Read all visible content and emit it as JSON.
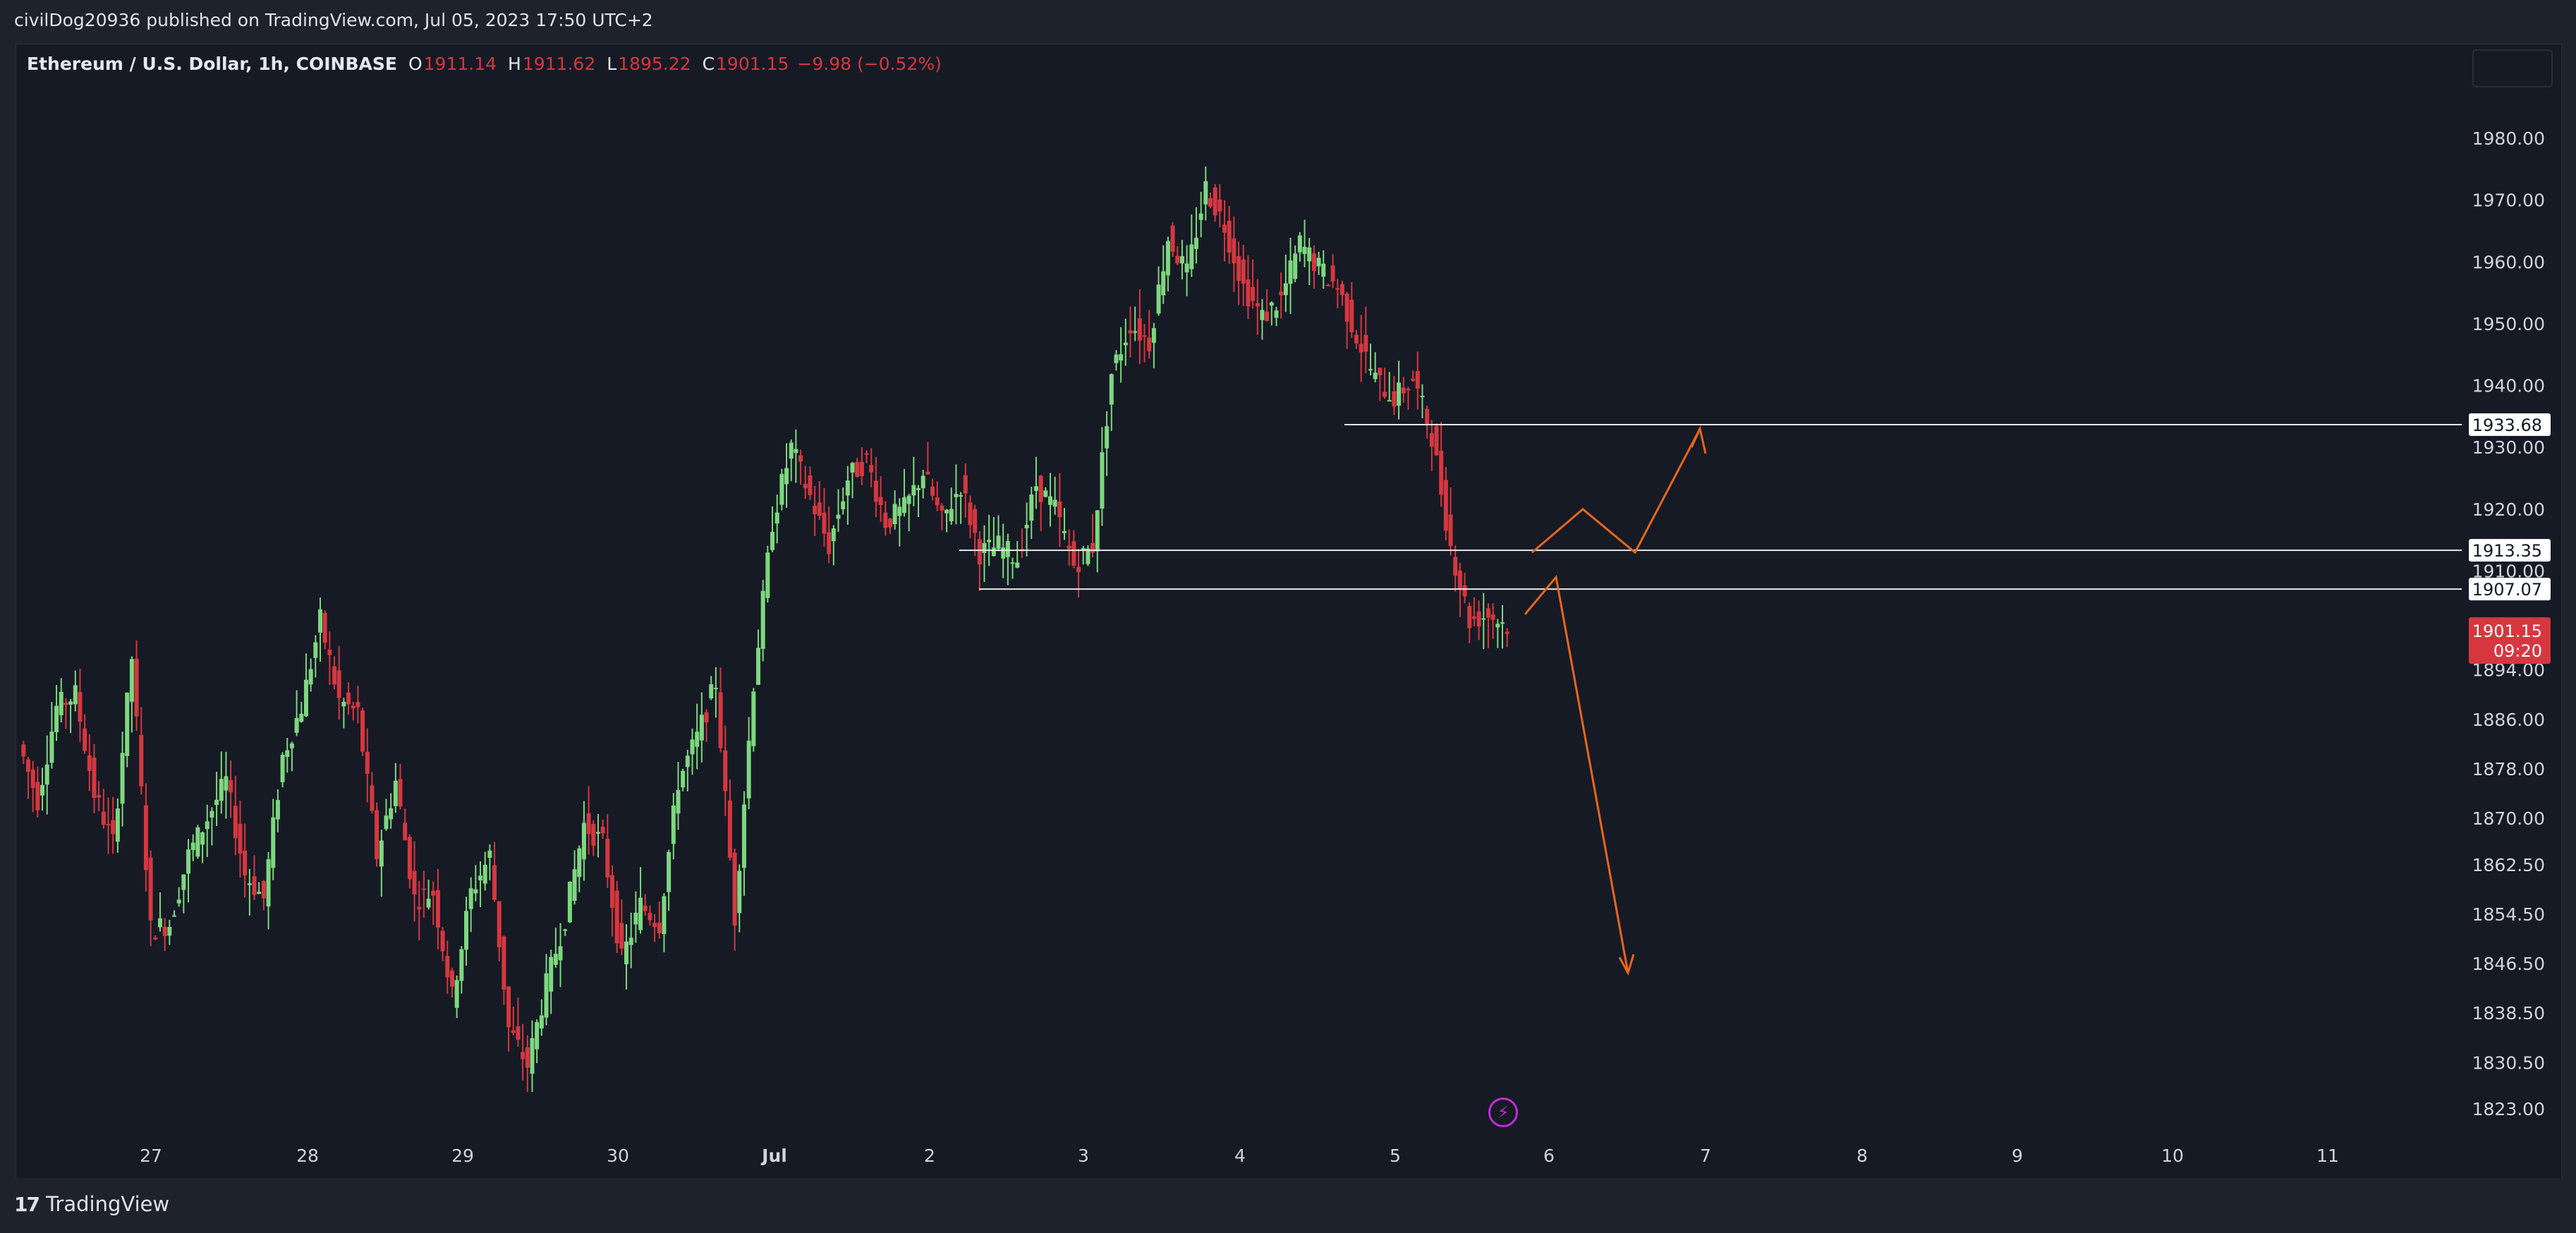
{
  "header": {
    "published_text": "civilDog20936 published on TradingView.com, Jul 05, 2023 17:50 UTC+2"
  },
  "legend": {
    "symbol": "Ethereum / U.S. Dollar, 1h, COINBASE",
    "open_label": "O",
    "open": "1911.14",
    "high_label": "H",
    "high": "1911.62",
    "low_label": "L",
    "low": "1895.22",
    "close_label": "C",
    "close": "1901.15",
    "change": "−9.98 (−0.52%)"
  },
  "price_scale": {
    "ticks": [
      "1980.00",
      "1970.00",
      "1960.00",
      "1950.00",
      "1940.00",
      "1930.00",
      "1920.00",
      "1910.00",
      "1894.00",
      "1886.00",
      "1878.00",
      "1870.00",
      "1862.50",
      "1854.50",
      "1846.50",
      "1838.50",
      "1830.50",
      "1823.00"
    ],
    "level_labels": [
      "1933.68",
      "1913.35",
      "1907.07"
    ],
    "last_price": "1901.15",
    "countdown": "09:20"
  },
  "time_scale": {
    "labels": [
      "27",
      "28",
      "29",
      "30",
      "Jul",
      "2",
      "3",
      "4",
      "5",
      "6",
      "7",
      "8",
      "9",
      "10",
      "11"
    ]
  },
  "drawings": {
    "horizontal_levels": [
      1933.68,
      1913.35,
      1907.07
    ]
  },
  "colors": {
    "background": "#161a25",
    "up": "#7dd87f",
    "down": "#d6373f",
    "arrow": "#e6661c",
    "level_line": "#e8e8e8",
    "price_badge": "#d6373f"
  },
  "icons": {
    "brand": "tradingview-logo-icon",
    "lightning": "lightning-icon"
  },
  "footer": {
    "brand": "TradingView"
  },
  "chart_data": {
    "type": "candlestick",
    "title": "Ethereum / U.S. Dollar, 1h, COINBASE",
    "ylim": [
      1818,
      1992
    ],
    "x_labels": [
      "27",
      "28",
      "29",
      "30",
      "Jul",
      "2",
      "3",
      "4",
      "5",
      "6",
      "7",
      "8",
      "9",
      "10",
      "11"
    ],
    "y_ticks": [
      1980,
      1970,
      1960,
      1950,
      1940,
      1930,
      1920,
      1910,
      1894,
      1886,
      1878,
      1870,
      1862.5,
      1854.5,
      1846.5,
      1838.5,
      1830.5,
      1823
    ],
    "trajectory": [
      [
        0,
        1882
      ],
      [
        1,
        1873
      ],
      [
        2,
        1888
      ],
      [
        3,
        1890
      ],
      [
        4,
        1874
      ],
      [
        5,
        1866
      ],
      [
        6,
        1896
      ],
      [
        7,
        1852
      ],
      [
        8,
        1853
      ],
      [
        9,
        1864
      ],
      [
        10,
        1870
      ],
      [
        11,
        1876
      ],
      [
        12,
        1861
      ],
      [
        13,
        1857
      ],
      [
        14,
        1880
      ],
      [
        15,
        1888
      ],
      [
        16,
        1902
      ],
      [
        17,
        1889
      ],
      [
        18,
        1887
      ],
      [
        19,
        1864
      ],
      [
        20,
        1876
      ],
      [
        21,
        1857
      ],
      [
        22,
        1858
      ],
      [
        23,
        1841
      ],
      [
        24,
        1858
      ],
      [
        25,
        1864
      ],
      [
        26,
        1836
      ],
      [
        27,
        1830
      ],
      [
        28,
        1843
      ],
      [
        29,
        1854
      ],
      [
        30,
        1869
      ],
      [
        31,
        1866
      ],
      [
        32,
        1847
      ],
      [
        33,
        1856
      ],
      [
        34,
        1853
      ],
      [
        35,
        1876
      ],
      [
        36,
        1883
      ],
      [
        37,
        1892
      ],
      [
        38,
        1854
      ],
      [
        39,
        1892
      ],
      [
        40,
        1918
      ],
      [
        41,
        1930
      ],
      [
        42,
        1922
      ],
      [
        43,
        1914
      ],
      [
        44,
        1925
      ],
      [
        45,
        1928
      ],
      [
        46,
        1918
      ],
      [
        47,
        1920
      ],
      [
        48,
        1926
      ],
      [
        49,
        1918
      ],
      [
        50,
        1924
      ],
      [
        51,
        1913
      ],
      [
        52,
        1914
      ],
      [
        53,
        1912
      ],
      [
        54,
        1924
      ],
      [
        55,
        1920
      ],
      [
        56,
        1911
      ],
      [
        57,
        1914
      ],
      [
        58,
        1942
      ],
      [
        59,
        1950
      ],
      [
        60,
        1947
      ],
      [
        61,
        1964
      ],
      [
        62,
        1958
      ],
      [
        63,
        1972
      ],
      [
        64,
        1966
      ],
      [
        65,
        1956
      ],
      [
        66,
        1951
      ],
      [
        67,
        1954
      ],
      [
        68,
        1963
      ],
      [
        69,
        1959
      ],
      [
        70,
        1956
      ],
      [
        71,
        1948
      ],
      [
        72,
        1941
      ],
      [
        73,
        1938
      ],
      [
        74,
        1941
      ],
      [
        75,
        1932
      ],
      [
        76,
        1914
      ],
      [
        77,
        1902
      ],
      [
        78,
        1903
      ],
      [
        79,
        1901.15
      ]
    ],
    "annotations": {
      "levels": [
        1933.68,
        1913.35,
        1907.07
      ],
      "projection_up": [
        "1906",
        "1913",
        "1920",
        "1913",
        "1933"
      ],
      "projection_down": [
        "1903",
        "1909",
        "1845"
      ]
    }
  }
}
